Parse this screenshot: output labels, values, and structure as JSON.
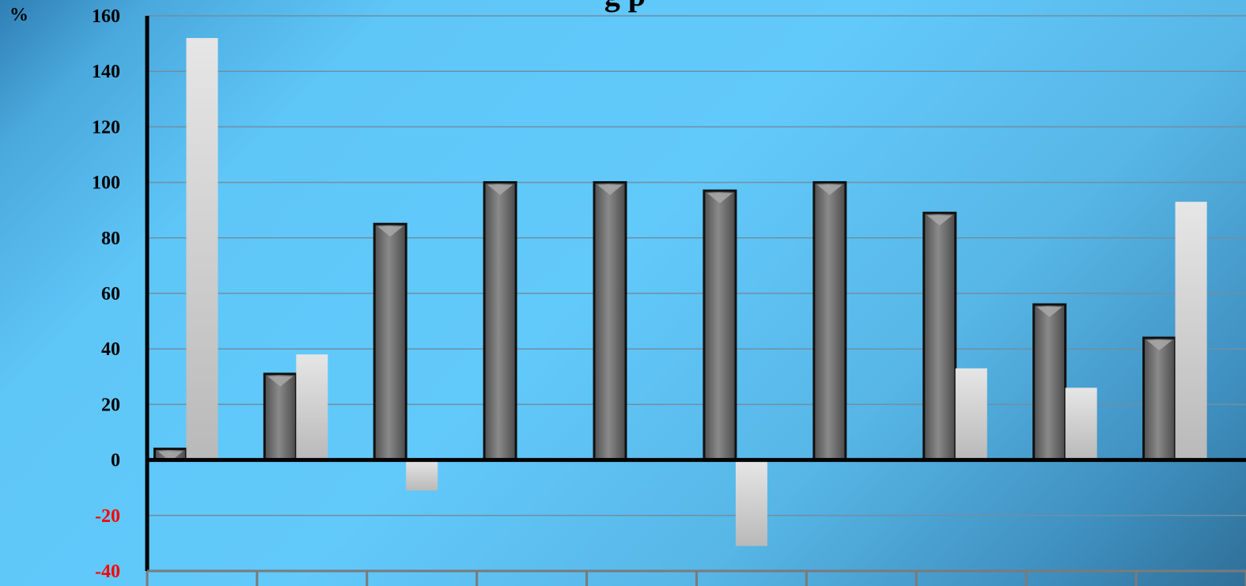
{
  "y_unit_label": "%",
  "title_fragment": "g                p",
  "colors": {
    "negative_tick": "#ff0000",
    "tick": "#000000",
    "series_dark": "#6f6f6f",
    "series_light": "#d8d8d8"
  },
  "chart_data": {
    "type": "bar",
    "title": "",
    "xlabel": "",
    "ylabel": "%",
    "ylim": [
      -40,
      160
    ],
    "yticks": [
      160,
      140,
      120,
      100,
      80,
      60,
      40,
      20,
      0,
      -20,
      -40
    ],
    "grid": true,
    "categories": [
      "",
      "",
      "",
      "",
      "",
      "",
      "",
      "",
      "",
      ""
    ],
    "series": [
      {
        "values": [
          4,
          31,
          85,
          100,
          100,
          97,
          100,
          89,
          56,
          44
        ]
      },
      {
        "values": [
          152,
          38,
          -11,
          null,
          null,
          -31,
          null,
          33,
          26,
          93
        ]
      }
    ]
  }
}
